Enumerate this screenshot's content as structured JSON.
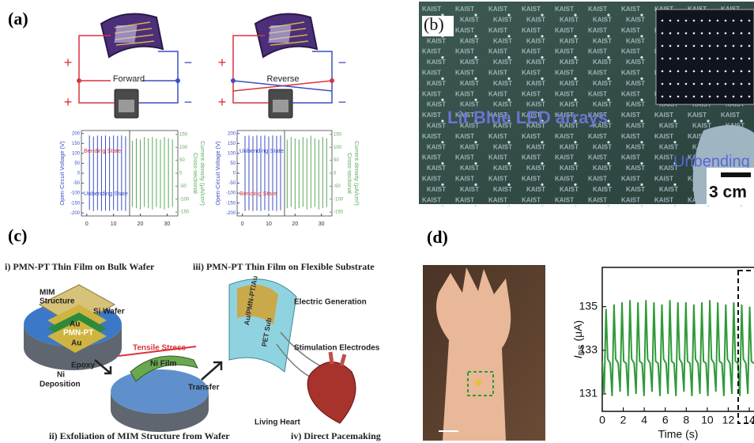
{
  "panels": {
    "a": {
      "label": "(a)",
      "plus": "+",
      "minus": "−",
      "modes": [
        "Forward",
        "Reverse"
      ],
      "plots": [
        {
          "ylabel": "Open-Circuit Voltage (V)",
          "y2label_lines": [
            "Cross-sectional",
            "Current density (μA/cm²)"
          ],
          "state_top": "Bending State",
          "state_top_color": "#d9343a",
          "state_bottom": "Unbending State",
          "state_bottom_color": "#3b4fc4",
          "xlim": [
            -2,
            34
          ],
          "xticks": [
            0,
            10,
            20,
            30
          ],
          "ylim": [
            -215,
            215
          ],
          "yticks": [
            200,
            150,
            100,
            50,
            0,
            -50,
            -100,
            -150,
            -200
          ],
          "y2lim": [
            -165,
            165
          ],
          "y2ticks": [
            150,
            100,
            50,
            0,
            -50,
            -100,
            -150
          ],
          "voltage": {
            "color": "#3b4fc4",
            "x": [
              1,
              2.5,
              4,
              5.5,
              7,
              8.5,
              10,
              11.5,
              13,
              14.5
            ],
            "peaks": [
              190,
              185,
              190,
              188,
              190,
              185,
              190,
              188,
              190,
              186
            ],
            "troughs": [
              -185,
              -190,
              -186,
              -190,
              -188,
              -190,
              -185,
              -190,
              -188,
              -190
            ]
          },
          "current": {
            "color": "#5aa95a",
            "x": [
              17,
              18.5,
              20,
              21.5,
              23,
              24.5,
              26,
              27.5,
              29,
              30.5,
              32
            ],
            "peaks": [
              125,
              135,
              130,
              140,
              135,
              140,
              135,
              130,
              140,
              135,
              130
            ],
            "troughs": [
              -130,
              -135,
              -140,
              -130,
              -135,
              -140,
              -130,
              -135,
              -140,
              -135,
              -130
            ]
          }
        },
        {
          "ylabel": "Open-Circuit Voltage (V)",
          "y2label_lines": [
            "Cross-sectional",
            "Current density (μA/cm²)"
          ],
          "state_top": "Unbending State",
          "state_top_color": "#3b4fc4",
          "state_bottom": "Bending State",
          "state_bottom_color": "#d9343a",
          "xlim": [
            -2,
            34
          ],
          "xticks": [
            0,
            10,
            20,
            30
          ],
          "ylim": [
            -215,
            215
          ],
          "yticks": [
            200,
            150,
            100,
            50,
            0,
            -50,
            -100,
            -150,
            -200
          ],
          "y2lim": [
            -165,
            165
          ],
          "y2ticks": [
            150,
            100,
            50,
            0,
            -50,
            -100,
            -150
          ],
          "voltage": {
            "color": "#3b4fc4",
            "x": [
              1,
              2.5,
              4,
              5.5,
              7,
              8.5,
              10,
              11.5,
              13,
              14.5
            ],
            "peaks": [
              188,
              190,
              186,
              190,
              188,
              190,
              185,
              190,
              188,
              190
            ],
            "troughs": [
              -190,
              -186,
              -190,
              -188,
              -190,
              -185,
              -190,
              -188,
              -190,
              -186
            ]
          },
          "current": {
            "color": "#5aa95a",
            "x": [
              17,
              18.5,
              20,
              21.5,
              23,
              24.5,
              26,
              27.5,
              29,
              30.5,
              32
            ],
            "peaks": [
              130,
              140,
              135,
              130,
              140,
              135,
              145,
              135,
              130,
              140,
              135
            ],
            "troughs": [
              -135,
              -130,
              -140,
              -135,
              -130,
              -140,
              -135,
              -130,
              -140,
              -135,
              -130
            ]
          }
        }
      ]
    },
    "b": {
      "label": "(b)",
      "tile_text": "KAIST",
      "caption": "Lit Blue LED arrays",
      "state": "Unbending",
      "scale": "3 cm"
    },
    "c": {
      "label": "(c)",
      "step1": "i) PMN-PT Thin Film on Bulk Wafer",
      "step2": "ii) Exfoliation of MIM Structure from Wafer",
      "step3": "iii) PMN-PT Thin Film on Flexible Substrate",
      "step4": "iv) Direct Pacemaking",
      "mim_lines": [
        "MIM",
        "Structure"
      ],
      "si_wafer": "Si Wafer",
      "au": "Au",
      "pmnpt": "PMN-PT",
      "epoxy": "Epoxy",
      "tensile": "Tensile Stress",
      "ni_film": "Ni Film",
      "ni_dep_lines": [
        "Ni",
        "Deposition"
      ],
      "transfer": "Transfer",
      "stack": "Au/PMN-PT/Au",
      "pet": "PET Sub",
      "electric": "Electric Generation",
      "electrodes": "Stimulation Electrodes",
      "heart": "Living Heart"
    },
    "d": {
      "label": "(d)",
      "chart": {
        "type": "line",
        "xlabel": "Time (s)",
        "ylabel_symbol": "I",
        "ylabel_sub": "DS",
        "ylabel_unit": " (μA)",
        "xlim": [
          0,
          14.45
        ],
        "xticks": [
          0,
          2,
          4,
          6,
          8,
          10,
          12,
          14
        ],
        "ylim": [
          130.2,
          136.8
        ],
        "yticks": [
          131,
          133,
          135
        ],
        "series": [
          {
            "color": "#2f9a3a",
            "x": [
              0,
              0.18,
              0.36,
              0.52,
              0.76,
              0.94,
              1.12,
              1.28,
              1.52,
              1.7,
              1.88,
              2.04,
              2.28,
              2.46,
              2.64,
              2.8,
              3.04,
              3.22,
              3.4,
              3.56,
              3.8,
              3.98,
              4.16,
              4.32,
              4.56,
              4.74,
              4.92,
              5.08,
              5.32,
              5.5,
              5.68,
              5.84,
              6.08,
              6.26,
              6.44,
              6.6,
              6.84,
              7.02,
              7.2,
              7.36,
              7.6,
              7.78,
              7.96,
              8.12,
              8.36,
              8.54,
              8.72,
              8.88,
              9.12,
              9.3,
              9.48,
              9.64,
              9.88,
              10.06,
              10.24,
              10.4,
              10.64,
              10.82,
              11,
              11.16,
              11.4,
              11.58,
              11.76,
              11.92,
              12.16,
              12.34,
              12.52,
              12.68,
              12.92,
              13.1,
              13.28,
              13.44,
              13.68,
              13.86,
              14.04,
              14.2,
              14.44
            ],
            "values": [
              132.5,
              131.0,
              134.9,
              132.6,
              132.4,
              130.9,
              135.1,
              132.6,
              132.4,
              131.1,
              135.2,
              132.5,
              132.4,
              130.9,
              135.3,
              132.6,
              132.4,
              131.0,
              135.2,
              132.5,
              132.4,
              130.9,
              135.3,
              132.6,
              132.4,
              131.1,
              135.2,
              132.5,
              132.4,
              130.9,
              135.1,
              132.6,
              132.4,
              131.0,
              135.3,
              132.5,
              132.4,
              130.9,
              135.2,
              132.6,
              132.4,
              131.1,
              135.2,
              132.5,
              132.4,
              130.9,
              135.1,
              132.6,
              132.4,
              131.0,
              135.2,
              132.5,
              132.4,
              130.9,
              135.3,
              132.6,
              132.4,
              131.1,
              135.2,
              132.5,
              132.4,
              130.9,
              135.1,
              132.6,
              132.4,
              131.0,
              135.2,
              132.5,
              132.4,
              130.9,
              135.1,
              132.6,
              132.4,
              131.0,
              135.0,
              132.5,
              132.4
            ]
          }
        ]
      }
    }
  }
}
